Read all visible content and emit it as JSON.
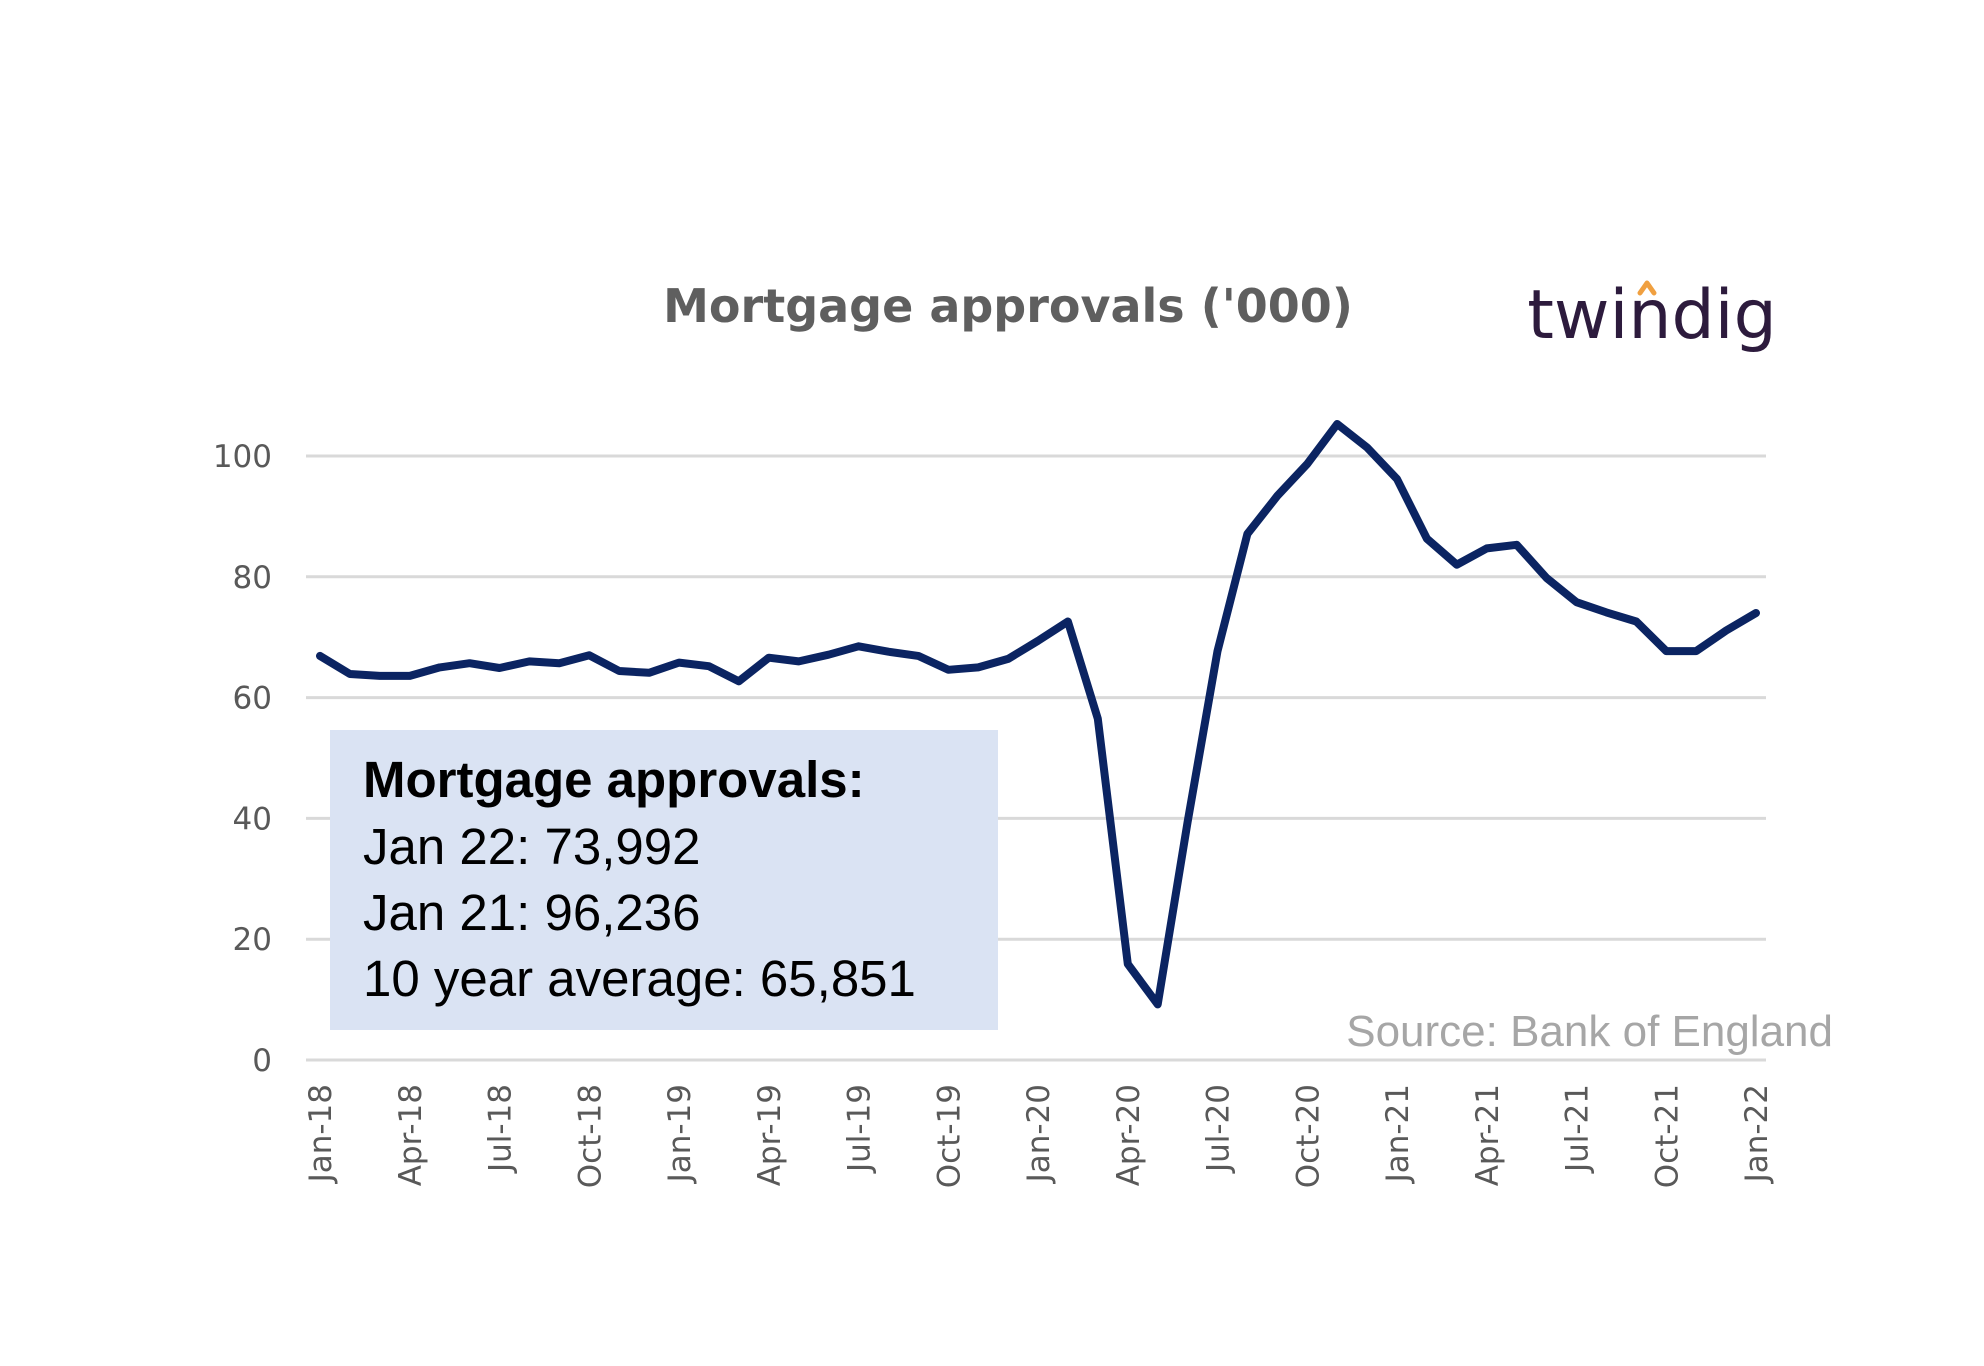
{
  "logo": {
    "text": "twindig",
    "accent": "#f0a040",
    "color": "#2d1b3d"
  },
  "source": "Source: Bank of England",
  "annotation": {
    "title": "Mortgage approvals:",
    "lines": [
      "Jan 22: 73,992",
      "Jan 21: 96,236",
      "10 year average: 65,851"
    ],
    "background": "#dae3f3"
  },
  "chart_data": {
    "type": "line",
    "title": "Mortgage approvals ('000)",
    "xlabel": "",
    "ylabel": "",
    "ylim": [
      0,
      100
    ],
    "yticks": [
      0,
      20,
      40,
      60,
      80,
      100
    ],
    "grid": true,
    "legend": "none",
    "line_color": "#0b2462",
    "x": [
      "Jan-18",
      "Feb-18",
      "Mar-18",
      "Apr-18",
      "May-18",
      "Jun-18",
      "Jul-18",
      "Aug-18",
      "Sep-18",
      "Oct-18",
      "Nov-18",
      "Dec-18",
      "Jan-19",
      "Feb-19",
      "Mar-19",
      "Apr-19",
      "May-19",
      "Jun-19",
      "Jul-19",
      "Aug-19",
      "Sep-19",
      "Oct-19",
      "Nov-19",
      "Dec-19",
      "Jan-20",
      "Feb-20",
      "Mar-20",
      "Apr-20",
      "May-20",
      "Jun-20",
      "Jul-20",
      "Aug-20",
      "Sep-20",
      "Oct-20",
      "Nov-20",
      "Dec-20",
      "Jan-21",
      "Feb-21",
      "Mar-21",
      "Apr-21",
      "May-21",
      "Jun-21",
      "Jul-21",
      "Aug-21",
      "Sep-21",
      "Oct-21",
      "Nov-21",
      "Dec-21",
      "Jan-22"
    ],
    "xtick_labels": [
      "Jan-18",
      "Apr-18",
      "Jul-18",
      "Oct-18",
      "Jan-19",
      "Apr-19",
      "Jul-19",
      "Oct-19",
      "Jan-20",
      "Apr-20",
      "Jul-20",
      "Oct-20",
      "Jan-21",
      "Apr-21",
      "Jul-21",
      "Oct-21",
      "Jan-22"
    ],
    "series": [
      {
        "values": [
          66.9,
          63.9,
          63.6,
          63.6,
          65.0,
          65.7,
          64.9,
          66.0,
          65.7,
          67.0,
          64.4,
          64.1,
          65.8,
          65.2,
          62.7,
          66.6,
          66.0,
          67.1,
          68.5,
          67.6,
          66.9,
          64.6,
          65.0,
          66.4,
          69.4,
          72.6,
          56.5,
          15.9,
          9.2,
          39.4,
          67.7,
          87.1,
          93.4,
          98.7,
          105.3,
          101.4,
          96.2,
          86.3,
          82.0,
          84.7,
          85.3,
          79.8,
          75.8,
          74.1,
          72.6,
          67.7,
          67.7,
          71.1,
          74.0
        ]
      }
    ]
  }
}
